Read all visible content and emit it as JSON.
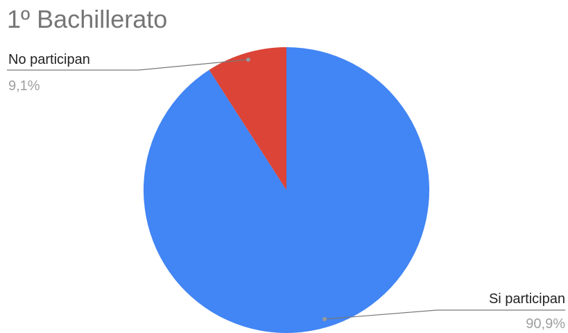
{
  "chart_data": {
    "type": "pie",
    "title": "1º Bachillerato",
    "slices": [
      {
        "label": "No participan",
        "value": 9.1,
        "percent_label": "9,1%",
        "color": "#DB4437"
      },
      {
        "label": "Si participan",
        "value": 90.9,
        "percent_label": "90,9%",
        "color": "#4285F4"
      }
    ],
    "start_angle_deg": 0,
    "direction": "counterclockwise",
    "legend": "none (labels with leader lines)"
  }
}
